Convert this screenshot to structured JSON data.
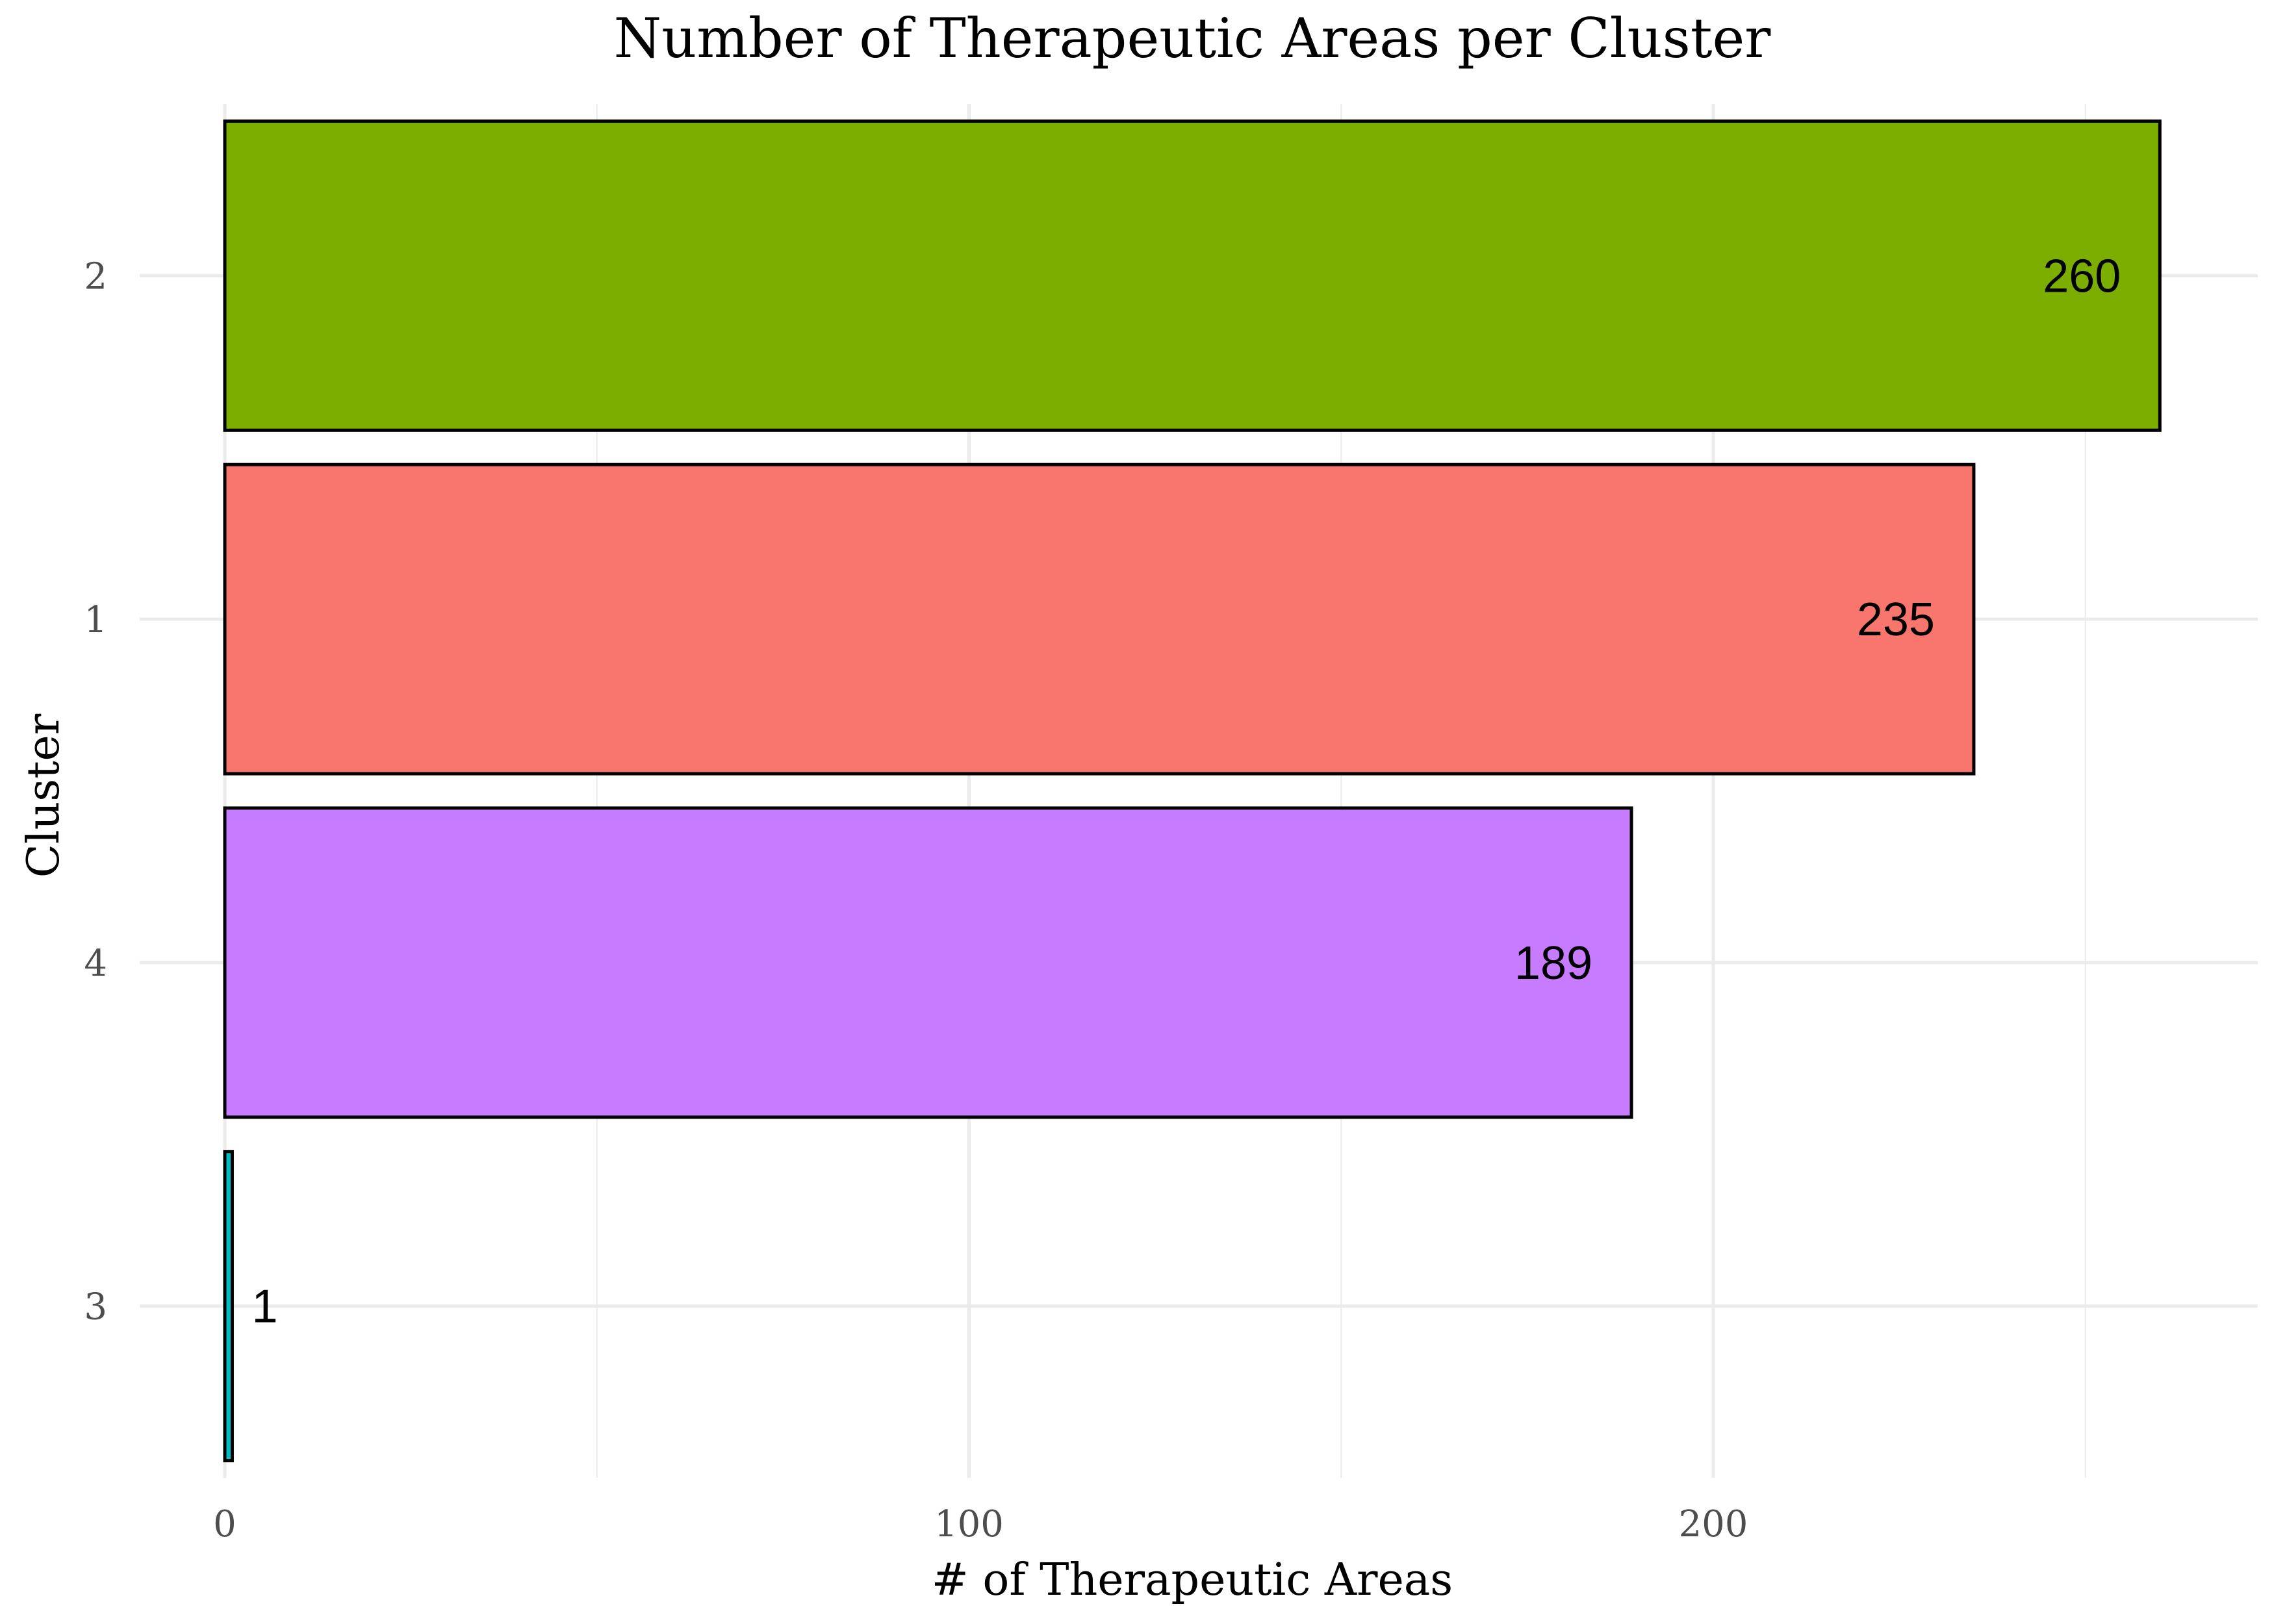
{
  "chart_data": {
    "type": "bar",
    "orientation": "horizontal",
    "title": "Number of Therapeutic Areas per Cluster",
    "xlabel": "# of Therapeutic Areas",
    "ylabel": "Cluster",
    "categories": [
      "2",
      "1",
      "4",
      "3"
    ],
    "values": [
      260,
      235,
      189,
      1
    ],
    "data_labels": [
      "260",
      "235",
      "189",
      "1"
    ],
    "colors": [
      "#7CAE00",
      "#F8766D",
      "#C77CFF",
      "#00BFC4"
    ],
    "xlim": [
      0,
      272
    ],
    "xticks": [
      0,
      100,
      200
    ],
    "xtick_labels": [
      "0",
      "100",
      "200"
    ],
    "minor_xticks": [
      50,
      150,
      250
    ],
    "grid": true,
    "legend": "none"
  }
}
